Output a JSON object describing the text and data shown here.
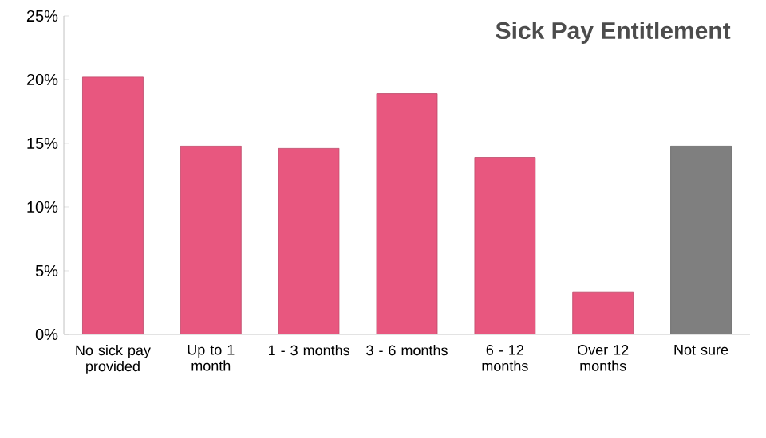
{
  "chart_data": {
    "type": "bar",
    "title": "Sick Pay Entitlement",
    "categories": [
      "No sick pay provided",
      "Up to  1 month",
      "1 - 3 months",
      "3 - 6 months",
      "6 - 12 months",
      "Over 12 months",
      "Not sure"
    ],
    "values": [
      20.2,
      14.8,
      14.6,
      18.9,
      13.9,
      3.3,
      14.8
    ],
    "colors": [
      "#e8577f",
      "#e8577f",
      "#e8577f",
      "#e8577f",
      "#e8577f",
      "#e8577f",
      "#7f7f7f"
    ],
    "ylim": [
      0,
      25
    ],
    "yticks": [
      {
        "value": 0,
        "label": "0%"
      },
      {
        "value": 5,
        "label": "5%"
      },
      {
        "value": 10,
        "label": "10%"
      },
      {
        "value": 15,
        "label": "15%"
      },
      {
        "value": 20,
        "label": "20%"
      },
      {
        "value": 25,
        "label": "25%"
      }
    ],
    "grid": false
  }
}
